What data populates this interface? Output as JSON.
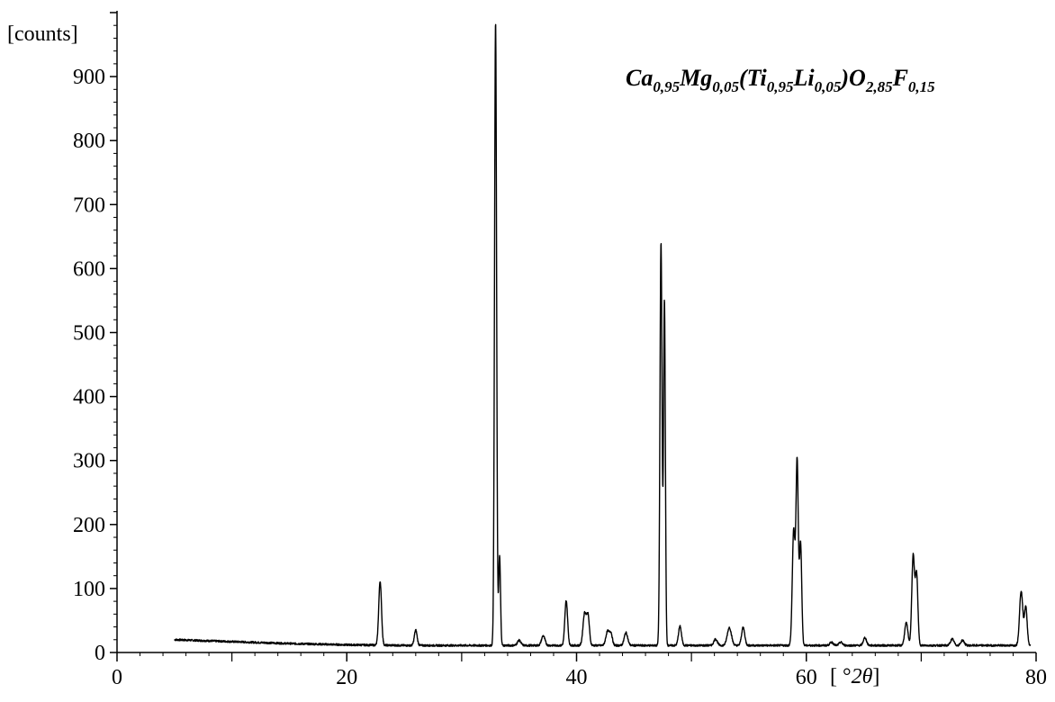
{
  "chart_data": {
    "type": "line",
    "title": "",
    "annotation": {
      "parts": [
        {
          "t": "Ca",
          "sub": false
        },
        {
          "t": "0,95",
          "sub": true
        },
        {
          "t": "Mg",
          "sub": false
        },
        {
          "t": "0,05",
          "sub": true
        },
        {
          "t": "(Ti",
          "sub": false
        },
        {
          "t": "0,95",
          "sub": true
        },
        {
          "t": "Li",
          "sub": false
        },
        {
          "t": "0,05",
          "sub": true
        },
        {
          "t": ")O",
          "sub": false
        },
        {
          "t": "2,85",
          "sub": true
        },
        {
          "t": "F",
          "sub": false
        },
        {
          "t": "0,15",
          "sub": true
        }
      ]
    },
    "xlabel": "[ °2θ]",
    "ylabel": "[counts]",
    "xlim": [
      0,
      80
    ],
    "ylim": [
      0,
      1000
    ],
    "x_ticks": [
      0,
      20,
      40,
      60,
      80
    ],
    "x_minor_ticks": [
      10,
      30,
      50,
      70
    ],
    "y_ticks": [
      0,
      100,
      200,
      300,
      400,
      500,
      600,
      700,
      800,
      900
    ],
    "x_tick_labels": [
      "0",
      "20",
      "40",
      "60",
      "80"
    ],
    "y_tick_labels": [
      "0",
      "100",
      "200",
      "300",
      "400",
      "500",
      "600",
      "700",
      "800",
      "900"
    ],
    "grid": false,
    "series": [
      {
        "color": "#000000",
        "background": [
          [
            5,
            20
          ],
          [
            10,
            17
          ],
          [
            15,
            14
          ],
          [
            20,
            12
          ],
          [
            25,
            11
          ],
          [
            30,
            11
          ],
          [
            35,
            11
          ],
          [
            40,
            11
          ],
          [
            45,
            11
          ],
          [
            50,
            11
          ],
          [
            55,
            11
          ],
          [
            60,
            11
          ],
          [
            65,
            11
          ],
          [
            70,
            11
          ],
          [
            75,
            11
          ],
          [
            79.5,
            11
          ]
        ],
        "peaks": [
          {
            "x": 22.9,
            "h": 100,
            "w": 0.12
          },
          {
            "x": 26.0,
            "h": 24,
            "w": 0.12
          },
          {
            "x": 32.95,
            "h": 975,
            "w": 0.09
          },
          {
            "x": 33.3,
            "h": 140,
            "w": 0.08
          },
          {
            "x": 35.0,
            "h": 8,
            "w": 0.15
          },
          {
            "x": 37.1,
            "h": 15,
            "w": 0.15
          },
          {
            "x": 39.1,
            "h": 70,
            "w": 0.12
          },
          {
            "x": 40.7,
            "h": 50,
            "w": 0.14
          },
          {
            "x": 41.0,
            "h": 45,
            "w": 0.12
          },
          {
            "x": 42.7,
            "h": 22,
            "w": 0.15
          },
          {
            "x": 43.0,
            "h": 18,
            "w": 0.12
          },
          {
            "x": 44.3,
            "h": 20,
            "w": 0.15
          },
          {
            "x": 47.35,
            "h": 630,
            "w": 0.09
          },
          {
            "x": 47.65,
            "h": 540,
            "w": 0.08
          },
          {
            "x": 49.0,
            "h": 30,
            "w": 0.13
          },
          {
            "x": 52.1,
            "h": 10,
            "w": 0.15
          },
          {
            "x": 53.3,
            "h": 28,
            "w": 0.18
          },
          {
            "x": 54.5,
            "h": 28,
            "w": 0.14
          },
          {
            "x": 58.9,
            "h": 180,
            "w": 0.12
          },
          {
            "x": 59.2,
            "h": 285,
            "w": 0.1
          },
          {
            "x": 59.5,
            "h": 160,
            "w": 0.1
          },
          {
            "x": 62.2,
            "h": 5,
            "w": 0.15
          },
          {
            "x": 63.0,
            "h": 5,
            "w": 0.15
          },
          {
            "x": 65.1,
            "h": 12,
            "w": 0.14
          },
          {
            "x": 68.7,
            "h": 35,
            "w": 0.14
          },
          {
            "x": 69.3,
            "h": 140,
            "w": 0.12
          },
          {
            "x": 69.6,
            "h": 110,
            "w": 0.11
          },
          {
            "x": 72.7,
            "h": 10,
            "w": 0.15
          },
          {
            "x": 73.6,
            "h": 8,
            "w": 0.15
          },
          {
            "x": 78.7,
            "h": 85,
            "w": 0.14
          },
          {
            "x": 79.1,
            "h": 60,
            "w": 0.12
          }
        ]
      }
    ]
  }
}
